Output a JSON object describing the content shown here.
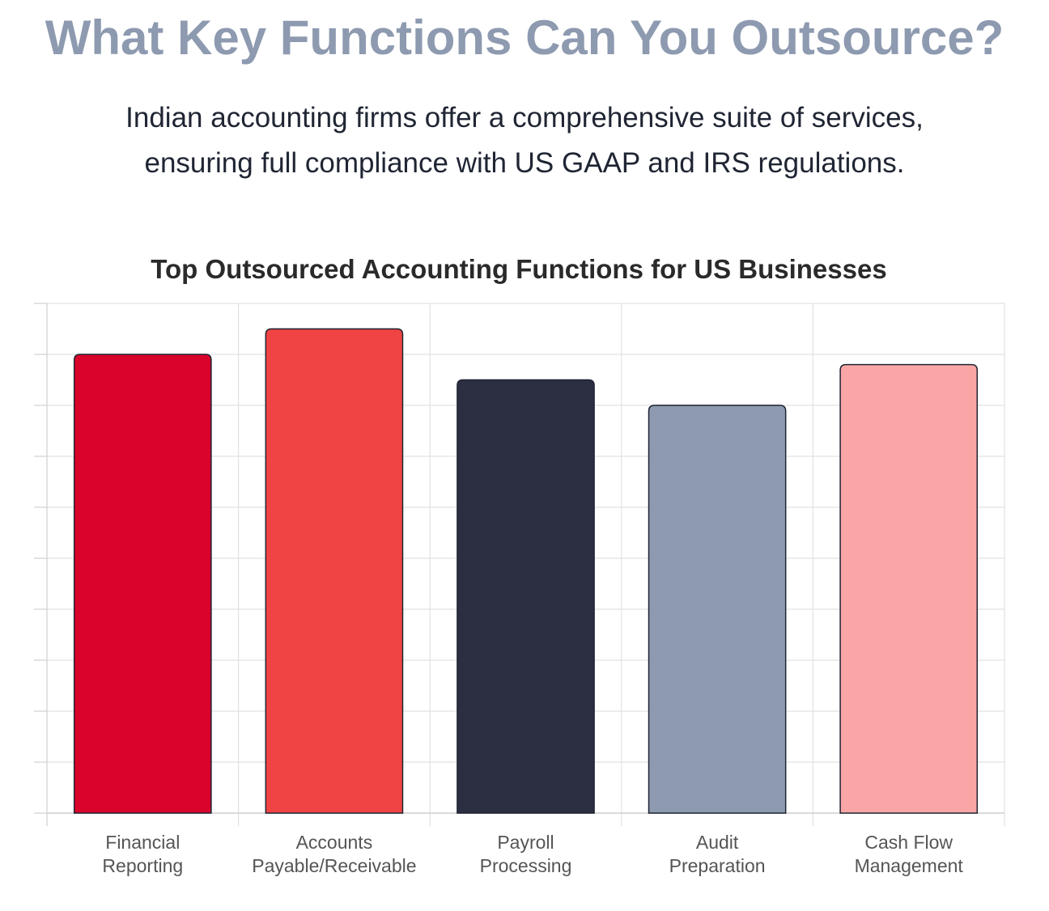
{
  "header": {
    "title": "What Key Functions Can You Outsource?",
    "subtitle_lines": [
      "Indian accounting firms offer a comprehensive suite of services,",
      "ensuring full compliance with US GAAP and IRS regulations."
    ]
  },
  "chart_data": {
    "type": "bar",
    "title": "Top Outsourced Accounting Functions for US Businesses",
    "xlabel": "",
    "ylabel": "",
    "categories": [
      [
        "Financial",
        "Reporting"
      ],
      [
        "Accounts",
        "Payable/Receivable"
      ],
      [
        "Payroll",
        "Processing"
      ],
      [
        "Audit",
        "Preparation"
      ],
      [
        "Cash Flow",
        "Management"
      ]
    ],
    "values": [
      90,
      95,
      85,
      80,
      88
    ],
    "ylim": [
      0,
      100
    ],
    "grid": true,
    "y_tick_labels_visible": false,
    "colors": [
      "#d9042b",
      "#f04444",
      "#2c2e42",
      "#8d9ab0",
      "#fba6a6"
    ],
    "bar_outline": "#1f2533"
  }
}
